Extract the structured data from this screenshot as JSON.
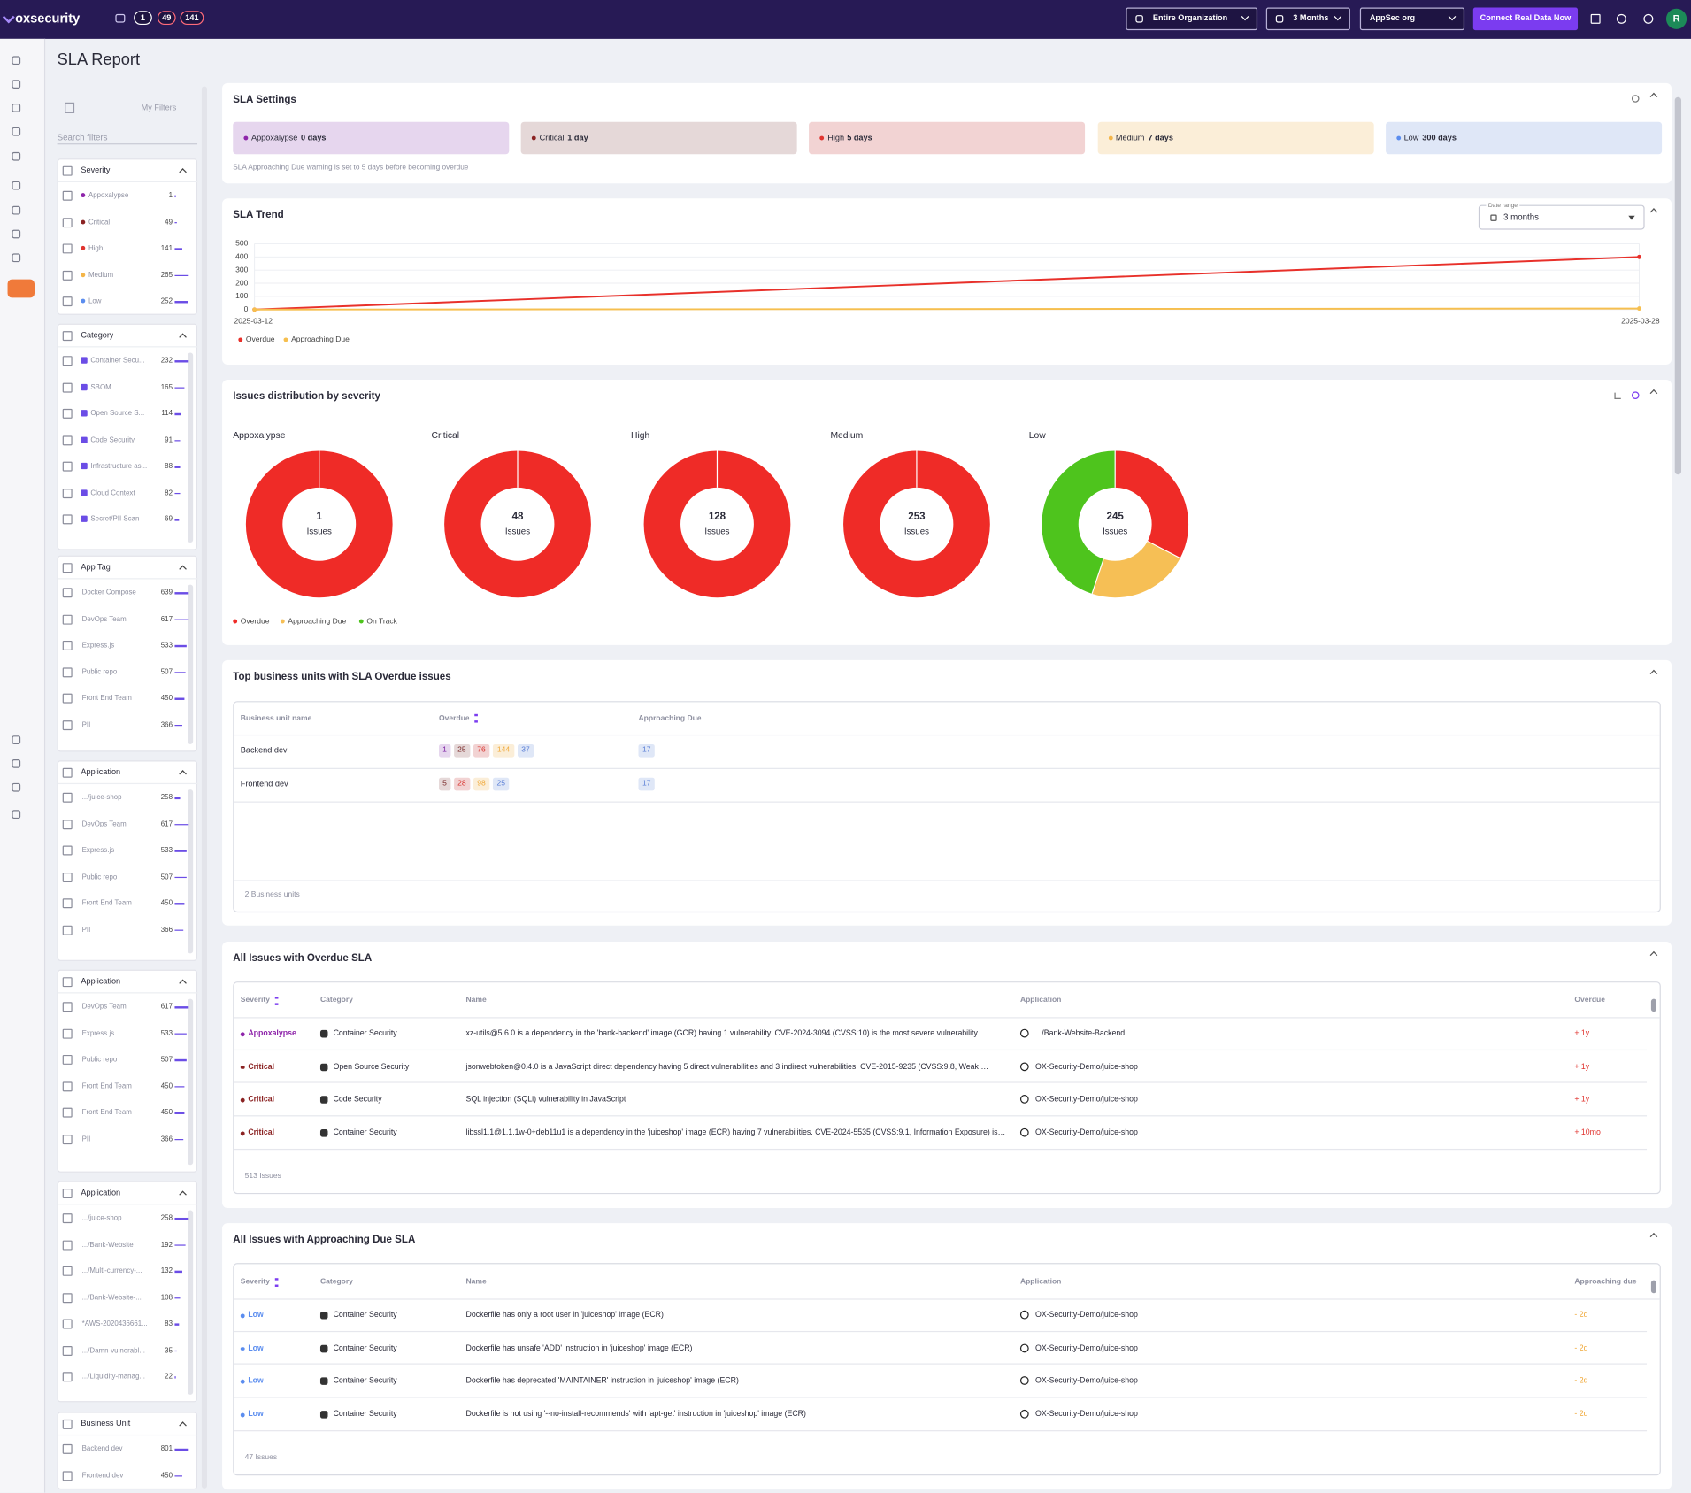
{
  "header": {
    "logo": "oxsecurity",
    "badges": [
      1,
      49,
      141
    ],
    "org": "Entire Organization",
    "period": "3 Months",
    "scope": "AppSec org",
    "cta": "Connect Real Data Now",
    "avatar": "R"
  },
  "page_title": "SLA Report",
  "filters": {
    "my_filters": "My Filters",
    "search_placeholder": "Search filters",
    "groups": [
      {
        "title": "Severity",
        "items": [
          {
            "label": "Appoxalypse",
            "count": 1,
            "color": "#8e24aa"
          },
          {
            "label": "Critical",
            "count": 49,
            "color": "#8b2323"
          },
          {
            "label": "High",
            "count": 141,
            "color": "#e0342f"
          },
          {
            "label": "Medium",
            "count": 265,
            "color": "#f4b548"
          },
          {
            "label": "Low",
            "count": 252,
            "color": "#5b8def"
          }
        ]
      },
      {
        "title": "Category",
        "items": [
          {
            "label": "Container Secu...",
            "count": 232
          },
          {
            "label": "SBOM",
            "count": 165
          },
          {
            "label": "Open Source S...",
            "count": 114
          },
          {
            "label": "Code Security",
            "count": 91
          },
          {
            "label": "Infrastructure as...",
            "count": 88
          },
          {
            "label": "Cloud Context",
            "count": 82
          },
          {
            "label": "Secret/PII Scan",
            "count": 69
          }
        ]
      },
      {
        "title": "App Tag",
        "items": [
          {
            "label": "Docker Compose",
            "count": 639
          },
          {
            "label": "DevOps Team",
            "count": 617
          },
          {
            "label": "Express.js",
            "count": 533
          },
          {
            "label": "Public repo",
            "count": 507
          },
          {
            "label": "Front End Team",
            "count": 450
          },
          {
            "label": "PII",
            "count": 366
          }
        ]
      },
      {
        "title": "Application",
        "items": [
          {
            "label": ".../juice-shop",
            "count": 258
          },
          {
            "label": "DevOps Team",
            "count": 617
          },
          {
            "label": "Express.js",
            "count": 533
          },
          {
            "label": "Public repo",
            "count": 507
          },
          {
            "label": "Front End Team",
            "count": 450
          },
          {
            "label": "PII",
            "count": 366
          }
        ]
      },
      {
        "title": "Application",
        "items": [
          {
            "label": "DevOps Team",
            "count": 617
          },
          {
            "label": "Express.js",
            "count": 533
          },
          {
            "label": "Public repo",
            "count": 507
          },
          {
            "label": "Front End Team",
            "count": 450
          },
          {
            "label": "Front End Team",
            "count": 450
          },
          {
            "label": "PII",
            "count": 366
          }
        ]
      },
      {
        "title": "Application",
        "items": [
          {
            "label": ".../juice-shop",
            "count": 258
          },
          {
            "label": ".../Bank-Website",
            "count": 192
          },
          {
            "label": ".../Multi-currency-...",
            "count": 132
          },
          {
            "label": ".../Bank-Website-...",
            "count": 108
          },
          {
            "label": "*AWS-2020436661...",
            "count": 83
          },
          {
            "label": ".../Damn-vulnerabl...",
            "count": 35
          },
          {
            "label": ".../Liquidity-manag...",
            "count": 22
          }
        ]
      },
      {
        "title": "Business Unit",
        "items": [
          {
            "label": "Backend dev",
            "count": 801
          },
          {
            "label": "Frontend dev",
            "count": 450
          }
        ]
      }
    ]
  },
  "sla_settings": {
    "title": "SLA Settings",
    "levels": [
      {
        "name": "Appoxalypse",
        "days": "0 days",
        "color": "#8e24aa",
        "bg": "#e6d6ee"
      },
      {
        "name": "Critical",
        "days": "1 day",
        "color": "#8b2323",
        "bg": "#e5d8d8"
      },
      {
        "name": "High",
        "days": "5 days",
        "color": "#e0342f",
        "bg": "#f2d3d3"
      },
      {
        "name": "Medium",
        "days": "7 days",
        "color": "#f4b548",
        "bg": "#fbeed8"
      },
      {
        "name": "Low",
        "days": "300 days",
        "color": "#5b8def",
        "bg": "#dfe7f7"
      }
    ],
    "note": "SLA Approaching Due warning is set to 5 days before becoming overdue"
  },
  "sla_trend": {
    "title": "SLA Trend",
    "date_range_label": "Date range",
    "date_range": "3 months"
  },
  "distribution": {
    "title": "Issues distribution by severity"
  },
  "chart_data": [
    {
      "type": "line",
      "categories": [
        "2025-03-12",
        "2025-03-28"
      ],
      "series": [
        {
          "name": "Overdue",
          "color": "#e8302a",
          "values": [
            0,
            400
          ]
        },
        {
          "name": "Approaching Due",
          "color": "#f6bf4f",
          "values": [
            0,
            8
          ]
        }
      ],
      "ylim": [
        0,
        500
      ],
      "yticks": [
        0,
        100,
        200,
        300,
        400,
        500
      ],
      "grid": true
    },
    {
      "type": "donut",
      "title": "Appoxalypse",
      "total": 1,
      "total_label": "Issues",
      "categories": [
        "Overdue",
        "Approaching Due",
        "On Track"
      ],
      "colors": [
        "#ef2b27",
        "#f6bf55",
        "#4ec41d"
      ],
      "values": [
        1,
        0,
        0
      ]
    },
    {
      "type": "donut",
      "title": "Critical",
      "total": 48,
      "total_label": "Issues",
      "categories": [
        "Overdue",
        "Approaching Due",
        "On Track"
      ],
      "colors": [
        "#ef2b27",
        "#f6bf55",
        "#4ec41d"
      ],
      "values": [
        48,
        0,
        0
      ]
    },
    {
      "type": "donut",
      "title": "High",
      "total": 128,
      "total_label": "Issues",
      "categories": [
        "Overdue",
        "Approaching Due",
        "On Track"
      ],
      "colors": [
        "#ef2b27",
        "#f6bf55",
        "#4ec41d"
      ],
      "values": [
        128,
        0,
        0
      ]
    },
    {
      "type": "donut",
      "title": "Medium",
      "total": 253,
      "total_label": "Issues",
      "categories": [
        "Overdue",
        "Approaching Due",
        "On Track"
      ],
      "colors": [
        "#ef2b27",
        "#f6bf55",
        "#4ec41d"
      ],
      "values": [
        253,
        0,
        0
      ]
    },
    {
      "type": "donut",
      "title": "Low",
      "total": 245,
      "total_label": "Issues",
      "categories": [
        "Overdue",
        "Approaching Due",
        "On Track"
      ],
      "colors": [
        "#ef2b27",
        "#f6bf55",
        "#4ec41d"
      ],
      "values": [
        80,
        55,
        110
      ]
    }
  ],
  "business_units": {
    "title": "Top business units with SLA Overdue issues",
    "columns": [
      "Business unit name",
      "Overdue",
      "Approaching Due"
    ],
    "rows": [
      {
        "name": "Backend dev",
        "overdue": [
          {
            "count": 1,
            "color": "#7b1fa2",
            "bg": "#e6d6ee"
          },
          {
            "count": 25,
            "color": "#7a2a2a",
            "bg": "#e5d8d8"
          },
          {
            "count": 76,
            "color": "#d8342f",
            "bg": "#f2d3d3"
          },
          {
            "count": 144,
            "color": "#f0a93a",
            "bg": "#fbeed8"
          },
          {
            "count": 37,
            "color": "#5b7fd6",
            "bg": "#dfe7f7"
          }
        ],
        "approaching": [
          {
            "count": 17,
            "color": "#5b7fd6",
            "bg": "#dfe7f7"
          }
        ]
      },
      {
        "name": "Frontend dev",
        "overdue": [
          {
            "count": 5,
            "color": "#7a2a2a",
            "bg": "#e5d8d8"
          },
          {
            "count": 28,
            "color": "#d8342f",
            "bg": "#f2d3d3"
          },
          {
            "count": 98,
            "color": "#f0a93a",
            "bg": "#fbeed8"
          },
          {
            "count": 25,
            "color": "#5b7fd6",
            "bg": "#dfe7f7"
          }
        ],
        "approaching": [
          {
            "count": 17,
            "color": "#5b7fd6",
            "bg": "#dfe7f7"
          }
        ]
      }
    ],
    "footer": "2 Business units"
  },
  "overdue_issues": {
    "title": "All Issues with Overdue SLA",
    "columns": [
      "Severity",
      "Category",
      "Name",
      "Application",
      "Overdue"
    ],
    "rows": [
      {
        "severity": "Appoxalypse",
        "color": "#8e24aa",
        "category": "Container Security",
        "name": "xz-utils@5.6.0 is a dependency in the 'bank-backend' image (GCR) having 1 vulnerability. CVE-2024-3094 (CVSS:10) is the most severe vulnerability.",
        "application": ".../Bank-Website-Backend",
        "time": "+ 1y"
      },
      {
        "severity": "Critical",
        "color": "#8b2323",
        "category": "Open Source Security",
        "name": "jsonwebtoken@0.4.0 is a JavaScript direct dependency having 5 direct vulnerabilities and 3 indirect vulnerabilities. CVE-2015-9235 (CVSS:9.8, Weak …",
        "application": "OX-Security-Demo/juice-shop",
        "time": "+ 1y"
      },
      {
        "severity": "Critical",
        "color": "#8b2323",
        "category": "Code Security",
        "name": "SQL injection (SQLi) vulnerability in JavaScript",
        "application": "OX-Security-Demo/juice-shop",
        "time": "+ 1y"
      },
      {
        "severity": "Critical",
        "color": "#8b2323",
        "category": "Container Security",
        "name": "libssl1.1@1.1.1w-0+deb11u1 is a dependency in the 'juiceshop' image (ECR) having 7 vulnerabilities. CVE-2024-5535 (CVSS:9.1, Information Exposure) is…",
        "application": "OX-Security-Demo/juice-shop",
        "time": "+ 10mo"
      }
    ],
    "footer": "513 Issues"
  },
  "approaching_issues": {
    "title": "All Issues with Approaching Due SLA",
    "columns": [
      "Severity",
      "Category",
      "Name",
      "Application",
      "Approaching due"
    ],
    "rows": [
      {
        "severity": "Low",
        "color": "#5b8def",
        "category": "Container Security",
        "name": "Dockerfile has only a root user in 'juiceshop' image (ECR)",
        "application": "OX-Security-Demo/juice-shop",
        "time": "- 2d"
      },
      {
        "severity": "Low",
        "color": "#5b8def",
        "category": "Container Security",
        "name": "Dockerfile has unsafe 'ADD' instruction in 'juiceshop' image (ECR)",
        "application": "OX-Security-Demo/juice-shop",
        "time": "- 2d"
      },
      {
        "severity": "Low",
        "color": "#5b8def",
        "category": "Container Security",
        "name": "Dockerfile has deprecated 'MAINTAINER' instruction in 'juiceshop' image (ECR)",
        "application": "OX-Security-Demo/juice-shop",
        "time": "- 2d"
      },
      {
        "severity": "Low",
        "color": "#5b8def",
        "category": "Container Security",
        "name": "Dockerfile is not using '--no-install-recommends' with 'apt-get' instruction in 'juiceshop' image (ECR)",
        "application": "OX-Security-Demo/juice-shop",
        "time": "- 2d"
      }
    ],
    "footer": "47 Issues"
  }
}
